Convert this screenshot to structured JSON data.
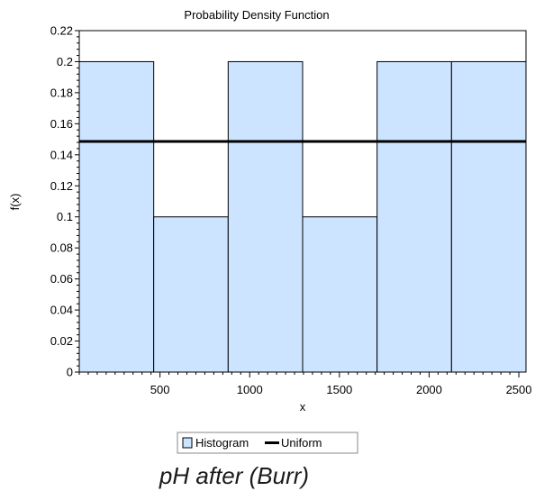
{
  "caption": "pH after (Burr)",
  "chart_data": {
    "type": "bar",
    "title": "Probability Density Function",
    "xlabel": "x",
    "ylabel": "f(x)",
    "xlim": [
      50,
      2540
    ],
    "ylim": [
      0,
      0.22
    ],
    "x_ticks": [
      500,
      1000,
      1500,
      2000,
      2500
    ],
    "y_ticks": [
      0,
      0.02,
      0.04,
      0.06,
      0.08,
      0.1,
      0.12,
      0.14,
      0.16,
      0.18,
      0.2,
      0.22
    ],
    "grid": false,
    "bins": [
      {
        "x0": 50,
        "x1": 465,
        "value": 0.2
      },
      {
        "x0": 465,
        "x1": 880,
        "value": 0.1
      },
      {
        "x0": 880,
        "x1": 1295,
        "value": 0.2
      },
      {
        "x0": 1295,
        "x1": 1710,
        "value": 0.1
      },
      {
        "x0": 1710,
        "x1": 2125,
        "value": 0.2
      },
      {
        "x0": 2125,
        "x1": 2540,
        "value": 0.2
      }
    ],
    "series": [
      {
        "name": "Histogram",
        "kind": "histogram",
        "fill": "#cce4ff",
        "stroke": "#000000"
      },
      {
        "name": "Uniform",
        "kind": "line",
        "x": [
          50,
          2540
        ],
        "y": [
          0.1486,
          0.1486
        ],
        "color": "#000000"
      }
    ],
    "legend_position": "bottom"
  }
}
